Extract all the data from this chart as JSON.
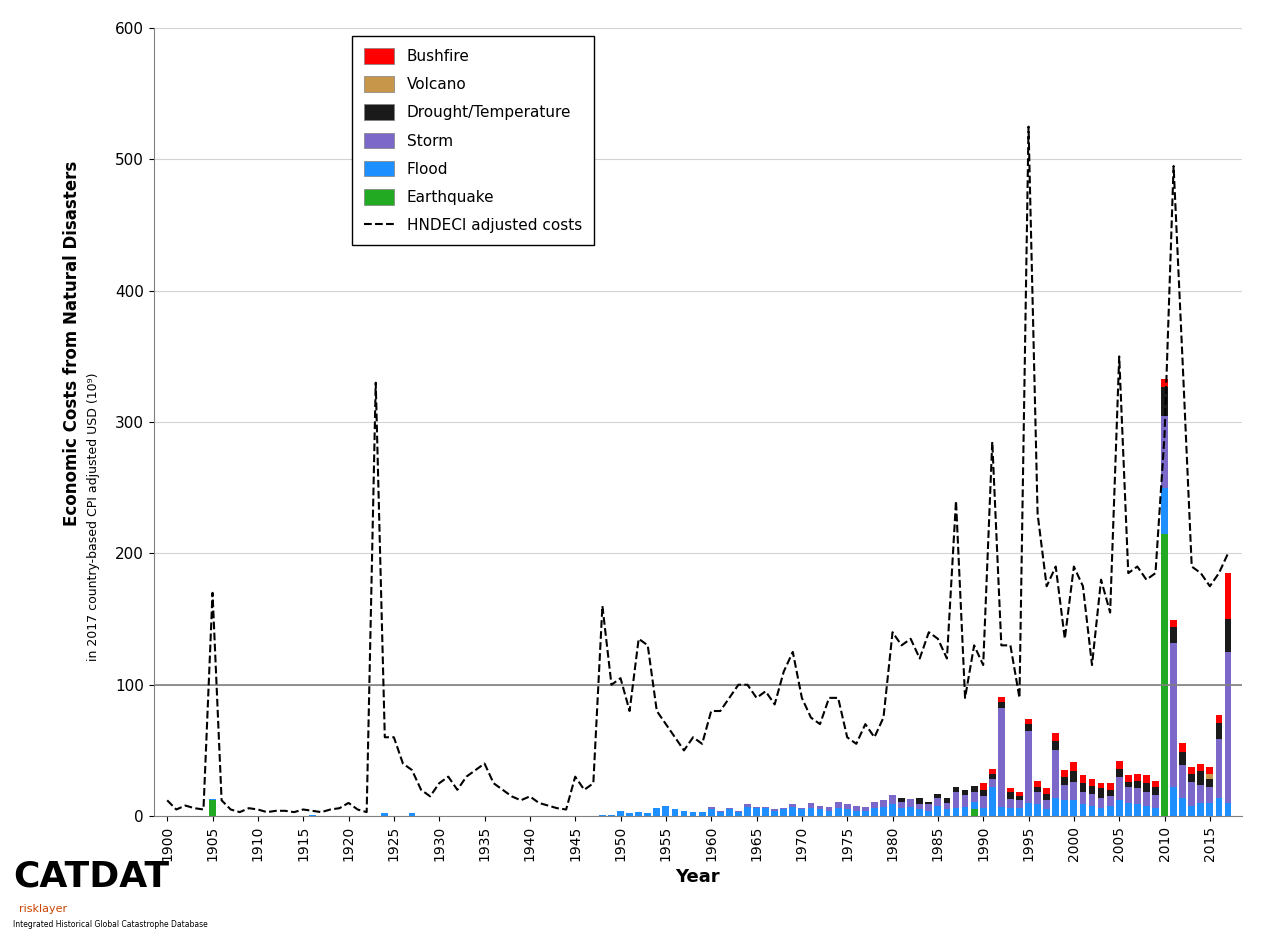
{
  "xlabel": "Year",
  "ylim": [
    0,
    600
  ],
  "yticks": [
    0,
    100,
    200,
    300,
    400,
    500,
    600
  ],
  "colors": {
    "bushfire": "#ff0000",
    "volcano": "#c8964a",
    "drought": "#1a1a1a",
    "storm": "#7b68c8",
    "flood": "#1e8fff",
    "earthquake": "#22aa22"
  },
  "years": [
    1900,
    1901,
    1902,
    1903,
    1904,
    1905,
    1906,
    1907,
    1908,
    1909,
    1910,
    1911,
    1912,
    1913,
    1914,
    1915,
    1916,
    1917,
    1918,
    1919,
    1920,
    1921,
    1922,
    1923,
    1924,
    1925,
    1926,
    1927,
    1928,
    1929,
    1930,
    1931,
    1932,
    1933,
    1934,
    1935,
    1936,
    1937,
    1938,
    1939,
    1940,
    1941,
    1942,
    1943,
    1944,
    1945,
    1946,
    1947,
    1948,
    1949,
    1950,
    1951,
    1952,
    1953,
    1954,
    1955,
    1956,
    1957,
    1958,
    1959,
    1960,
    1961,
    1962,
    1963,
    1964,
    1965,
    1966,
    1967,
    1968,
    1969,
    1970,
    1971,
    1972,
    1973,
    1974,
    1975,
    1976,
    1977,
    1978,
    1979,
    1980,
    1981,
    1982,
    1983,
    1984,
    1985,
    1986,
    1987,
    1988,
    1989,
    1990,
    1991,
    1992,
    1993,
    1994,
    1995,
    1996,
    1997,
    1998,
    1999,
    2000,
    2001,
    2002,
    2003,
    2004,
    2005,
    2006,
    2007,
    2008,
    2009,
    2010,
    2011,
    2012,
    2013,
    2014,
    2015,
    2016,
    2017
  ],
  "earthquake": [
    0,
    0,
    0,
    0,
    0,
    12,
    0,
    0,
    0,
    0,
    0,
    0,
    0,
    0,
    0,
    0,
    0,
    0,
    0,
    0,
    0,
    0,
    0,
    0,
    0,
    0,
    0,
    0,
    0,
    0,
    0,
    0,
    0,
    0,
    0,
    0,
    0,
    0,
    0,
    0,
    0,
    0,
    0,
    0,
    0,
    0,
    0,
    0,
    0,
    0,
    0,
    0,
    0,
    0,
    0,
    0,
    0,
    0,
    0,
    0,
    0,
    0,
    0,
    0,
    0,
    0,
    0,
    0,
    0,
    0,
    0,
    0,
    0,
    0,
    0,
    0,
    0,
    0,
    0,
    0,
    0,
    0,
    0,
    0,
    0,
    0,
    0,
    0,
    0,
    5,
    0,
    0,
    0,
    0,
    0,
    0,
    0,
    0,
    0,
    0,
    0,
    0,
    0,
    0,
    0,
    0,
    0,
    0,
    0,
    0,
    215,
    0,
    0,
    0,
    0,
    0,
    0,
    0
  ],
  "flood": [
    0,
    0,
    0,
    0,
    0,
    1,
    0,
    0,
    0,
    0,
    0,
    0,
    0,
    0,
    0,
    0,
    1,
    0,
    0,
    0,
    0,
    0,
    0,
    0,
    2,
    0,
    0,
    2,
    0,
    0,
    0,
    0,
    0,
    0,
    0,
    0,
    0,
    0,
    0,
    0,
    0,
    0,
    0,
    0,
    0,
    0,
    0,
    0,
    1,
    1,
    4,
    2,
    3,
    2,
    6,
    8,
    5,
    4,
    3,
    3,
    5,
    3,
    5,
    3,
    7,
    6,
    6,
    4,
    5,
    7,
    5,
    6,
    5,
    4,
    6,
    5,
    4,
    4,
    6,
    7,
    9,
    6,
    7,
    5,
    4,
    8,
    5,
    6,
    7,
    6,
    6,
    22,
    7,
    6,
    6,
    10,
    9,
    5,
    14,
    12,
    12,
    9,
    8,
    6,
    8,
    12,
    10,
    9,
    8,
    6,
    35,
    22,
    14,
    8,
    10,
    10,
    14,
    10
  ],
  "storm": [
    0,
    0,
    0,
    0,
    0,
    0,
    0,
    0,
    0,
    0,
    0,
    0,
    0,
    0,
    0,
    0,
    0,
    0,
    0,
    0,
    0,
    0,
    0,
    0,
    0,
    0,
    0,
    0,
    0,
    0,
    0,
    0,
    0,
    0,
    0,
    0,
    0,
    0,
    0,
    0,
    0,
    0,
    0,
    0,
    0,
    0,
    0,
    0,
    0,
    0,
    0,
    0,
    0,
    0,
    0,
    0,
    0,
    0,
    0,
    0,
    2,
    1,
    1,
    1,
    2,
    1,
    1,
    1,
    1,
    2,
    1,
    4,
    3,
    3,
    5,
    4,
    4,
    3,
    5,
    5,
    7,
    5,
    6,
    4,
    5,
    6,
    5,
    12,
    9,
    7,
    9,
    6,
    75,
    7,
    6,
    55,
    9,
    7,
    36,
    12,
    14,
    9,
    9,
    8,
    7,
    18,
    12,
    12,
    10,
    10,
    55,
    110,
    25,
    18,
    14,
    12,
    45,
    115
  ],
  "drought": [
    0,
    0,
    0,
    0,
    0,
    0,
    0,
    0,
    0,
    0,
    0,
    0,
    0,
    0,
    0,
    0,
    0,
    0,
    0,
    0,
    0,
    0,
    0,
    0,
    0,
    0,
    0,
    0,
    0,
    0,
    0,
    0,
    0,
    0,
    0,
    0,
    0,
    0,
    0,
    0,
    0,
    0,
    0,
    0,
    0,
    0,
    0,
    0,
    0,
    0,
    0,
    0,
    0,
    0,
    0,
    0,
    0,
    0,
    0,
    0,
    0,
    0,
    0,
    0,
    0,
    0,
    0,
    0,
    0,
    0,
    0,
    0,
    0,
    0,
    0,
    0,
    0,
    0,
    0,
    0,
    0,
    3,
    0,
    5,
    2,
    3,
    4,
    4,
    4,
    5,
    5,
    4,
    5,
    5,
    3,
    5,
    4,
    5,
    7,
    6,
    8,
    7,
    6,
    7,
    5,
    6,
    4,
    6,
    7,
    6,
    22,
    12,
    10,
    6,
    10,
    6,
    12,
    25
  ],
  "volcano": [
    0,
    0,
    0,
    0,
    0,
    0,
    0,
    0,
    0,
    0,
    0,
    0,
    0,
    0,
    0,
    0,
    0,
    0,
    0,
    0,
    0,
    0,
    0,
    0,
    0,
    0,
    0,
    0,
    0,
    0,
    0,
    0,
    0,
    0,
    0,
    0,
    0,
    0,
    0,
    0,
    0,
    0,
    0,
    0,
    0,
    0,
    0,
    0,
    0,
    0,
    0,
    0,
    0,
    0,
    0,
    0,
    0,
    0,
    0,
    0,
    0,
    0,
    0,
    0,
    0,
    0,
    0,
    0,
    0,
    0,
    0,
    0,
    0,
    0,
    0,
    0,
    0,
    0,
    0,
    0,
    0,
    0,
    0,
    0,
    0,
    0,
    0,
    0,
    0,
    0,
    0,
    0,
    0,
    0,
    0,
    0,
    0,
    0,
    0,
    0,
    0,
    0,
    0,
    0,
    0,
    0,
    0,
    0,
    0,
    0,
    0,
    0,
    0,
    0,
    0,
    4,
    0,
    0
  ],
  "bushfire": [
    0,
    0,
    0,
    0,
    0,
    0,
    0,
    0,
    0,
    0,
    0,
    0,
    0,
    0,
    0,
    0,
    0,
    0,
    0,
    0,
    0,
    0,
    0,
    0,
    0,
    0,
    0,
    0,
    0,
    0,
    0,
    0,
    0,
    0,
    0,
    0,
    0,
    0,
    0,
    0,
    0,
    0,
    0,
    0,
    0,
    0,
    0,
    0,
    0,
    0,
    0,
    0,
    0,
    0,
    0,
    0,
    0,
    0,
    0,
    0,
    0,
    0,
    0,
    0,
    0,
    0,
    0,
    0,
    0,
    0,
    0,
    0,
    0,
    0,
    0,
    0,
    0,
    0,
    0,
    0,
    0,
    0,
    0,
    0,
    0,
    0,
    0,
    0,
    0,
    0,
    5,
    4,
    4,
    3,
    3,
    4,
    5,
    4,
    6,
    5,
    7,
    6,
    5,
    4,
    5,
    6,
    5,
    5,
    6,
    5,
    6,
    5,
    7,
    5,
    6,
    5,
    6,
    35
  ],
  "hndeci": [
    12,
    5,
    8,
    6,
    5,
    170,
    12,
    5,
    3,
    6,
    5,
    3,
    4,
    4,
    3,
    5,
    4,
    3,
    5,
    6,
    10,
    5,
    3,
    330,
    60,
    60,
    40,
    35,
    20,
    15,
    25,
    30,
    20,
    30,
    35,
    40,
    25,
    20,
    15,
    12,
    15,
    10,
    8,
    6,
    5,
    30,
    20,
    25,
    160,
    100,
    105,
    80,
    135,
    130,
    80,
    70,
    60,
    50,
    60,
    55,
    80,
    80,
    90,
    100,
    100,
    90,
    95,
    85,
    110,
    125,
    90,
    75,
    70,
    90,
    90,
    60,
    55,
    70,
    60,
    75,
    140,
    130,
    135,
    120,
    140,
    135,
    120,
    240,
    90,
    130,
    115,
    285,
    130,
    130,
    90,
    525,
    230,
    175,
    190,
    135,
    190,
    175,
    115,
    180,
    155,
    350,
    185,
    190,
    180,
    185,
    290,
    495,
    345,
    190,
    185,
    175,
    185,
    200
  ]
}
